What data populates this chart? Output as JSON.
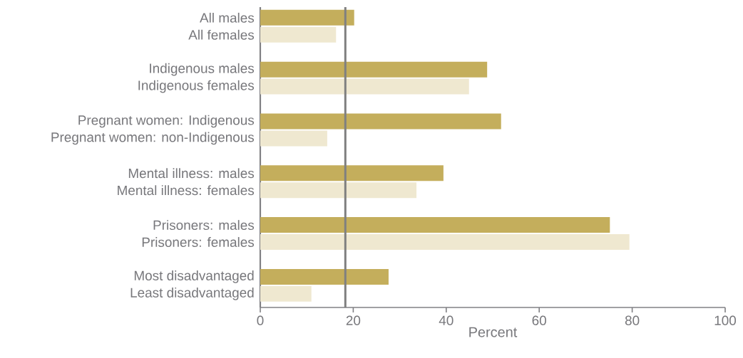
{
  "chart_data": {
    "type": "bar",
    "orientation": "horizontal",
    "xlabel": "Percent",
    "categories": [
      "All males",
      "All females",
      "Indigenous males",
      "Indigenous females",
      "Pregnant women: Indigenous",
      "Pregnant women: non-Indigenous",
      "Mental illness: males",
      "Mental illness: females",
      "Prisoners: males",
      "Prisoners: females",
      "Most disadvantaged",
      "Least disadvantaged"
    ],
    "values": [
      20.2,
      16.3,
      48.8,
      44.9,
      51.8,
      14.4,
      39.4,
      33.6,
      75.2,
      79.4,
      27.6,
      11.0
    ],
    "colors": [
      "#c4ae5c",
      "#efe8d0",
      "#c4ae5c",
      "#efe8d0",
      "#c4ae5c",
      "#efe8d0",
      "#c4ae5c",
      "#efe8d0",
      "#c4ae5c",
      "#efe8d0",
      "#c4ae5c",
      "#efe8d0"
    ],
    "xlim": [
      0,
      100
    ],
    "xticks": [
      0,
      20,
      40,
      60,
      80,
      100
    ],
    "ref_lines": [
      {
        "axis": "x",
        "value": 18.3,
        "color": "#808080"
      }
    ]
  }
}
